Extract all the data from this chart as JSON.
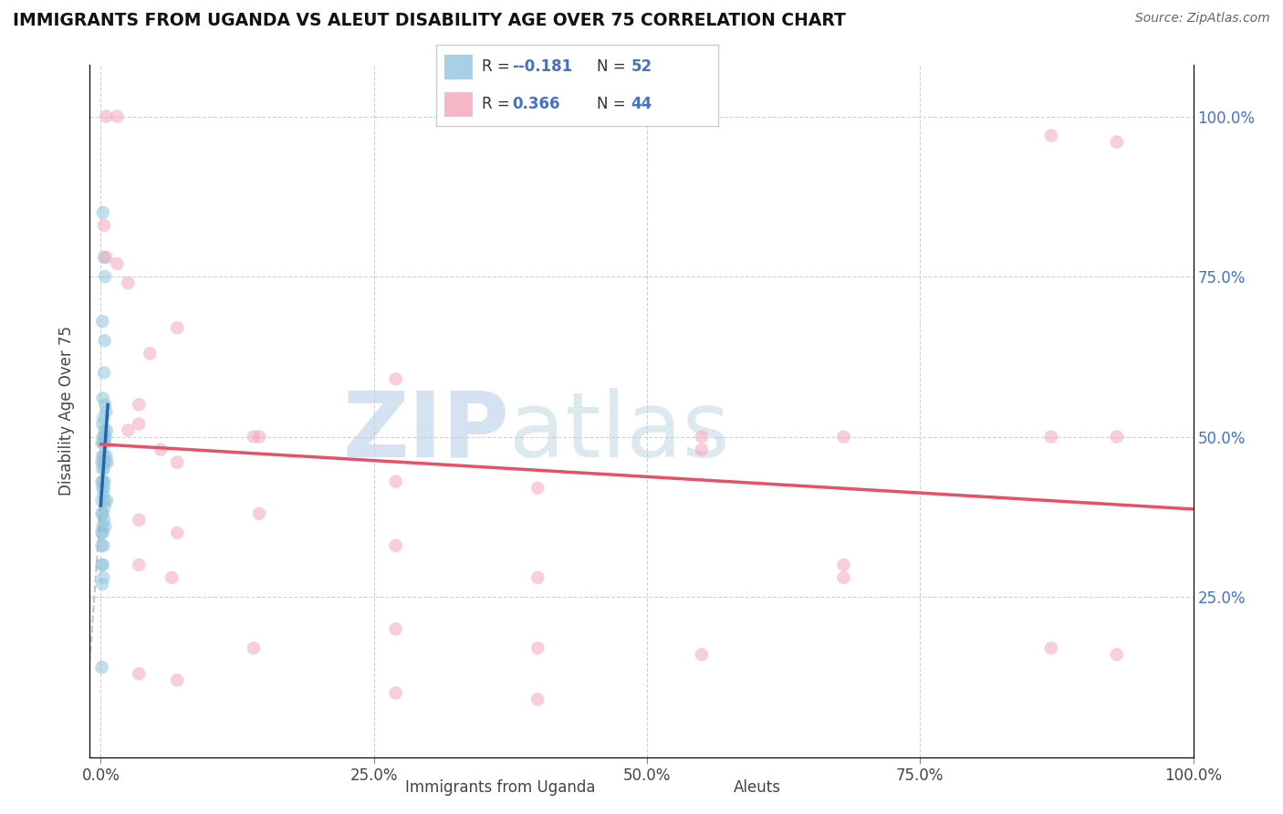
{
  "title": "IMMIGRANTS FROM UGANDA VS ALEUT DISABILITY AGE OVER 75 CORRELATION CHART",
  "source": "Source: ZipAtlas.com",
  "ylabel": "Disability Age Over 75",
  "watermark_zip": "ZIP",
  "watermark_atlas": "atlas",
  "legend_r1": "-0.181",
  "legend_n1": "52",
  "legend_r2": "0.366",
  "legend_n2": "44",
  "blue_color": "#92c5de",
  "pink_color": "#f4a6b8",
  "blue_line_color": "#2166ac",
  "pink_line_color": "#e8506a",
  "blue_scatter": [
    [
      0.2,
      85.0
    ],
    [
      0.3,
      78.0
    ],
    [
      0.4,
      75.0
    ],
    [
      0.15,
      68.0
    ],
    [
      0.35,
      65.0
    ],
    [
      0.3,
      60.0
    ],
    [
      0.2,
      56.0
    ],
    [
      0.25,
      53.0
    ],
    [
      0.4,
      55.0
    ],
    [
      0.5,
      54.0
    ],
    [
      0.15,
      52.0
    ],
    [
      0.35,
      51.0
    ],
    [
      0.2,
      50.0
    ],
    [
      0.3,
      50.0
    ],
    [
      0.45,
      50.0
    ],
    [
      0.55,
      51.0
    ],
    [
      0.1,
      49.0
    ],
    [
      0.25,
      49.0
    ],
    [
      0.4,
      49.0
    ],
    [
      0.15,
      47.0
    ],
    [
      0.3,
      47.0
    ],
    [
      0.5,
      47.0
    ],
    [
      0.1,
      46.0
    ],
    [
      0.25,
      46.0
    ],
    [
      0.4,
      46.0
    ],
    [
      0.6,
      46.0
    ],
    [
      0.15,
      45.0
    ],
    [
      0.3,
      45.0
    ],
    [
      0.1,
      43.0
    ],
    [
      0.2,
      43.0
    ],
    [
      0.35,
      43.0
    ],
    [
      0.15,
      42.0
    ],
    [
      0.3,
      42.0
    ],
    [
      0.1,
      40.0
    ],
    [
      0.25,
      41.0
    ],
    [
      0.4,
      40.0
    ],
    [
      0.55,
      40.0
    ],
    [
      0.1,
      38.0
    ],
    [
      0.2,
      38.0
    ],
    [
      0.35,
      39.0
    ],
    [
      0.15,
      36.0
    ],
    [
      0.3,
      37.0
    ],
    [
      0.1,
      35.0
    ],
    [
      0.2,
      35.0
    ],
    [
      0.4,
      36.0
    ],
    [
      0.1,
      33.0
    ],
    [
      0.25,
      33.0
    ],
    [
      0.1,
      30.0
    ],
    [
      0.2,
      30.0
    ],
    [
      0.15,
      27.0
    ],
    [
      0.25,
      28.0
    ],
    [
      0.1,
      14.0
    ]
  ],
  "pink_scatter": [
    [
      0.5,
      100.0
    ],
    [
      1.5,
      100.0
    ],
    [
      0.3,
      83.0
    ],
    [
      0.5,
      78.0
    ],
    [
      1.5,
      77.0
    ],
    [
      2.5,
      74.0
    ],
    [
      7.0,
      67.0
    ],
    [
      4.5,
      63.0
    ],
    [
      27.0,
      59.0
    ],
    [
      3.5,
      55.0
    ],
    [
      2.5,
      51.0
    ],
    [
      3.5,
      52.0
    ],
    [
      14.0,
      50.0
    ],
    [
      14.5,
      50.0
    ],
    [
      5.5,
      48.0
    ],
    [
      7.0,
      46.0
    ],
    [
      27.0,
      43.0
    ],
    [
      40.0,
      42.0
    ],
    [
      3.5,
      37.0
    ],
    [
      7.0,
      35.0
    ],
    [
      27.0,
      33.0
    ],
    [
      3.5,
      30.0
    ],
    [
      6.5,
      28.0
    ],
    [
      40.0,
      28.0
    ],
    [
      68.0,
      28.0
    ],
    [
      27.0,
      20.0
    ],
    [
      40.0,
      17.0
    ],
    [
      55.0,
      16.0
    ],
    [
      87.0,
      17.0
    ],
    [
      93.0,
      16.0
    ],
    [
      3.5,
      13.0
    ],
    [
      7.0,
      12.0
    ],
    [
      27.0,
      10.0
    ],
    [
      40.0,
      9.0
    ],
    [
      87.0,
      97.0
    ],
    [
      93.0,
      96.0
    ],
    [
      55.0,
      50.0
    ],
    [
      68.0,
      50.0
    ],
    [
      87.0,
      50.0
    ],
    [
      93.0,
      50.0
    ],
    [
      55.0,
      48.0
    ],
    [
      68.0,
      30.0
    ],
    [
      14.0,
      17.0
    ],
    [
      14.5,
      38.0
    ]
  ],
  "xlim": [
    0,
    1.0
  ],
  "xlim_pct": [
    0,
    100
  ],
  "ylim": [
    0,
    108
  ],
  "ytick_vals": [
    0,
    25,
    50,
    75,
    100
  ],
  "ytick_labels_right": [
    "",
    "25.0%",
    "50.0%",
    "75.0%",
    "100.0%"
  ],
  "xtick_vals_pct": [
    0,
    25,
    50,
    75,
    100
  ],
  "xtick_labels": [
    "0.0%",
    "25.0%",
    "50.0%",
    "75.0%",
    "100.0%"
  ],
  "grid_color": "#cccccc",
  "bg_color": "#ffffff",
  "scatter_alpha": 0.55,
  "scatter_size": 110,
  "blue_r": -0.181,
  "pink_r": 0.366
}
